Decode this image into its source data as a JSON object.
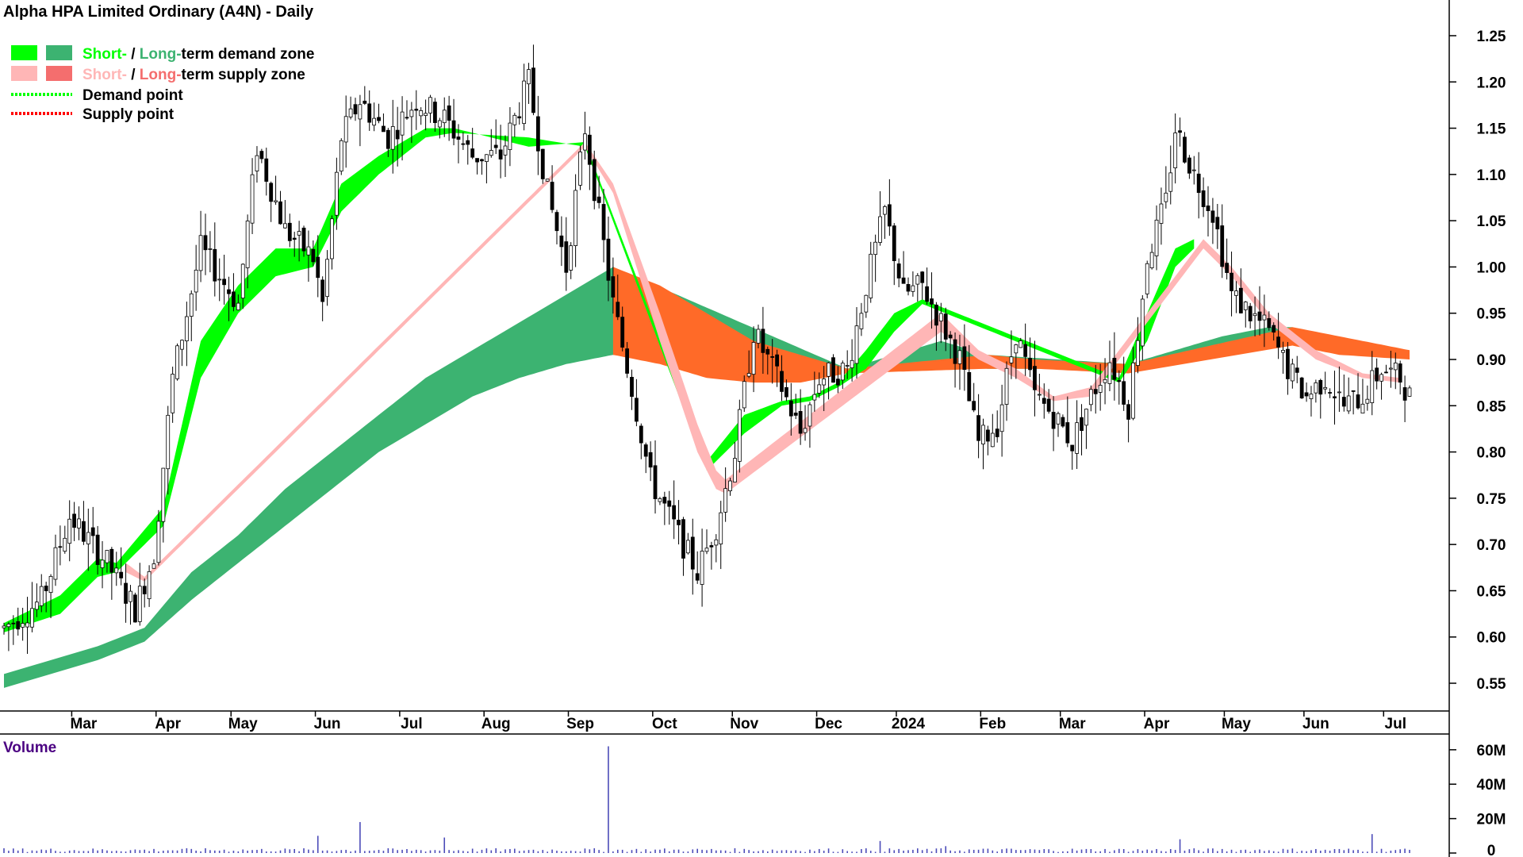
{
  "chart_data": {
    "type": "candlestick",
    "title": "Alpha HPA Limited Ordinary (A4N) - Daily",
    "legend": [
      {
        "label_a": "Short-",
        "sep": " / ",
        "label_b": "Long-",
        "rest": "term demand zone",
        "color_a": "#00ff00",
        "color_b": "#3cb371"
      },
      {
        "label_a": "Short-",
        "sep": " / ",
        "label_b": "Long-",
        "rest": "term supply zone",
        "color_a": "#ffb6b6",
        "color_b": "#f46e6e"
      },
      {
        "label": "Demand point",
        "color": "#00ff00"
      },
      {
        "label": "Supply point",
        "color": "#ff0000"
      }
    ],
    "y_axis": {
      "min": 0.52,
      "max": 1.28,
      "ticks": [
        "1.25",
        "1.20",
        "1.15",
        "1.10",
        "1.05",
        "1.00",
        "0.95",
        "0.90",
        "0.85",
        "0.80",
        "0.75",
        "0.70",
        "0.65",
        "0.60",
        "0.55"
      ]
    },
    "x_axis": {
      "labels": [
        "Mar",
        "Apr",
        "May",
        "Jun",
        "Jul",
        "Aug",
        "Sep",
        "Oct",
        "Nov",
        "Dec",
        "2024",
        "Feb",
        "Mar",
        "Apr",
        "May",
        "Jun",
        "Jul"
      ],
      "label_index": [
        17,
        35,
        51,
        69,
        87,
        105,
        123,
        141,
        158,
        176,
        193,
        211,
        228,
        246,
        263,
        280,
        297
      ]
    },
    "volume": {
      "label": "Volume",
      "ticks": [
        "60M",
        "40M",
        "20M",
        "0"
      ],
      "max": 65
    },
    "price_anchors": [
      [
        0,
        0.61
      ],
      [
        8,
        0.64
      ],
      [
        14,
        0.73
      ],
      [
        22,
        0.68
      ],
      [
        28,
        0.63
      ],
      [
        32,
        0.69
      ],
      [
        36,
        0.88
      ],
      [
        42,
        1.02
      ],
      [
        46,
        0.99
      ],
      [
        50,
        0.96
      ],
      [
        54,
        1.13
      ],
      [
        60,
        1.04
      ],
      [
        66,
        1.01
      ],
      [
        68,
        0.96
      ],
      [
        72,
        1.14
      ],
      [
        76,
        1.18
      ],
      [
        82,
        1.14
      ],
      [
        88,
        1.18
      ],
      [
        94,
        1.16
      ],
      [
        100,
        1.12
      ],
      [
        106,
        1.12
      ],
      [
        112,
        1.2
      ],
      [
        116,
        1.08
      ],
      [
        120,
        1.0
      ],
      [
        124,
        1.15
      ],
      [
        130,
        0.96
      ],
      [
        134,
        0.87
      ],
      [
        138,
        0.77
      ],
      [
        144,
        0.71
      ],
      [
        148,
        0.67
      ],
      [
        152,
        0.72
      ],
      [
        156,
        0.8
      ],
      [
        160,
        0.93
      ],
      [
        166,
        0.87
      ],
      [
        170,
        0.82
      ],
      [
        174,
        0.88
      ],
      [
        180,
        0.89
      ],
      [
        184,
        0.98
      ],
      [
        188,
        1.06
      ],
      [
        192,
        0.97
      ],
      [
        196,
        0.98
      ],
      [
        200,
        0.94
      ],
      [
        204,
        0.9
      ],
      [
        208,
        0.81
      ],
      [
        212,
        0.83
      ],
      [
        216,
        0.93
      ],
      [
        220,
        0.86
      ],
      [
        224,
        0.84
      ],
      [
        228,
        0.81
      ],
      [
        232,
        0.86
      ],
      [
        236,
        0.9
      ],
      [
        240,
        0.85
      ],
      [
        244,
        1.01
      ],
      [
        248,
        1.07
      ],
      [
        250,
        1.15
      ],
      [
        254,
        1.1
      ],
      [
        258,
        1.06
      ],
      [
        262,
        0.97
      ],
      [
        266,
        0.95
      ],
      [
        270,
        0.93
      ],
      [
        274,
        0.89
      ],
      [
        278,
        0.86
      ],
      [
        282,
        0.88
      ],
      [
        286,
        0.85
      ],
      [
        290,
        0.86
      ],
      [
        294,
        0.89
      ],
      [
        298,
        0.88
      ],
      [
        300,
        0.86
      ]
    ],
    "short_demand_anchors": [
      [
        0,
        0.605,
        0.615
      ],
      [
        12,
        0.625,
        0.645
      ],
      [
        20,
        0.665,
        0.685
      ],
      [
        24,
        0.67,
        0.68
      ],
      [
        34,
        0.72,
        0.74
      ],
      [
        42,
        0.88,
        0.92
      ],
      [
        50,
        0.95,
        0.98
      ],
      [
        58,
        0.99,
        1.02
      ],
      [
        66,
        1.0,
        1.02
      ],
      [
        72,
        1.06,
        1.09
      ],
      [
        80,
        1.1,
        1.12
      ],
      [
        90,
        1.14,
        1.15
      ],
      [
        96,
        1.145,
        1.15
      ],
      [
        112,
        1.14,
        1.13
      ],
      [
        124,
        1.13,
        1.135
      ],
      [
        150,
        0.78,
        0.79
      ],
      [
        158,
        0.82,
        0.84
      ],
      [
        166,
        0.85,
        0.855
      ],
      [
        172,
        0.855,
        0.86
      ],
      [
        178,
        0.87,
        0.875
      ],
      [
        184,
        0.89,
        0.91
      ],
      [
        190,
        0.93,
        0.95
      ],
      [
        196,
        0.96,
        0.965
      ],
      [
        238,
        0.875,
        0.88
      ],
      [
        244,
        0.92,
        0.95
      ],
      [
        250,
        1.0,
        1.02
      ],
      [
        254,
        1.02,
        1.03
      ]
    ],
    "short_supply_anchors": [
      [
        26,
        0.67,
        0.68
      ],
      [
        30,
        0.66,
        0.665
      ],
      [
        124,
        1.13,
        1.135
      ],
      [
        130,
        1.08,
        1.09
      ],
      [
        140,
        0.92,
        0.95
      ],
      [
        148,
        0.8,
        0.83
      ],
      [
        152,
        0.76,
        0.78
      ],
      [
        154,
        0.755,
        0.77
      ],
      [
        200,
        0.93,
        0.95
      ],
      [
        208,
        0.9,
        0.91
      ],
      [
        216,
        0.88,
        0.89
      ],
      [
        224,
        0.855,
        0.86
      ],
      [
        232,
        0.86,
        0.87
      ],
      [
        256,
        1.02,
        1.03
      ],
      [
        262,
        0.99,
        1.0
      ],
      [
        270,
        0.94,
        0.95
      ],
      [
        280,
        0.9,
        0.91
      ],
      [
        290,
        0.88,
        0.885
      ],
      [
        298,
        0.875,
        0.88
      ]
    ],
    "long_demand_anchors": [
      [
        0,
        0.545,
        0.56
      ],
      [
        10,
        0.56,
        0.575
      ],
      [
        20,
        0.575,
        0.59
      ],
      [
        30,
        0.595,
        0.61
      ],
      [
        40,
        0.64,
        0.67
      ],
      [
        50,
        0.68,
        0.71
      ],
      [
        60,
        0.72,
        0.76
      ],
      [
        70,
        0.76,
        0.8
      ],
      [
        80,
        0.8,
        0.84
      ],
      [
        90,
        0.83,
        0.88
      ],
      [
        100,
        0.86,
        0.91
      ],
      [
        110,
        0.88,
        0.94
      ],
      [
        120,
        0.895,
        0.97
      ],
      [
        130,
        0.905,
        1.0
      ],
      [
        180,
        0.885,
        0.89
      ],
      [
        190,
        0.89,
        0.905
      ],
      [
        200,
        0.895,
        0.92
      ],
      [
        210,
        0.89,
        0.905
      ],
      [
        240,
        0.89,
        0.895
      ],
      [
        250,
        0.9,
        0.91
      ],
      [
        260,
        0.91,
        0.925
      ],
      [
        270,
        0.915,
        0.935
      ],
      [
        275,
        0.915,
        0.935
      ]
    ],
    "long_supply_anchors": [
      [
        130,
        0.905,
        1.0
      ],
      [
        140,
        0.895,
        0.98
      ],
      [
        150,
        0.88,
        0.95
      ],
      [
        160,
        0.875,
        0.92
      ],
      [
        170,
        0.875,
        0.905
      ],
      [
        180,
        0.885,
        0.89
      ],
      [
        210,
        0.89,
        0.905
      ],
      [
        220,
        0.89,
        0.9
      ],
      [
        240,
        0.885,
        0.895
      ],
      [
        275,
        0.915,
        0.935
      ],
      [
        285,
        0.905,
        0.925
      ],
      [
        300,
        0.9,
        0.91
      ]
    ],
    "volume_spikes": [
      [
        67,
        10
      ],
      [
        76,
        18
      ],
      [
        94,
        9
      ],
      [
        129,
        62
      ],
      [
        187,
        7
      ],
      [
        201,
        4
      ],
      [
        251,
        8
      ],
      [
        292,
        11
      ]
    ]
  }
}
